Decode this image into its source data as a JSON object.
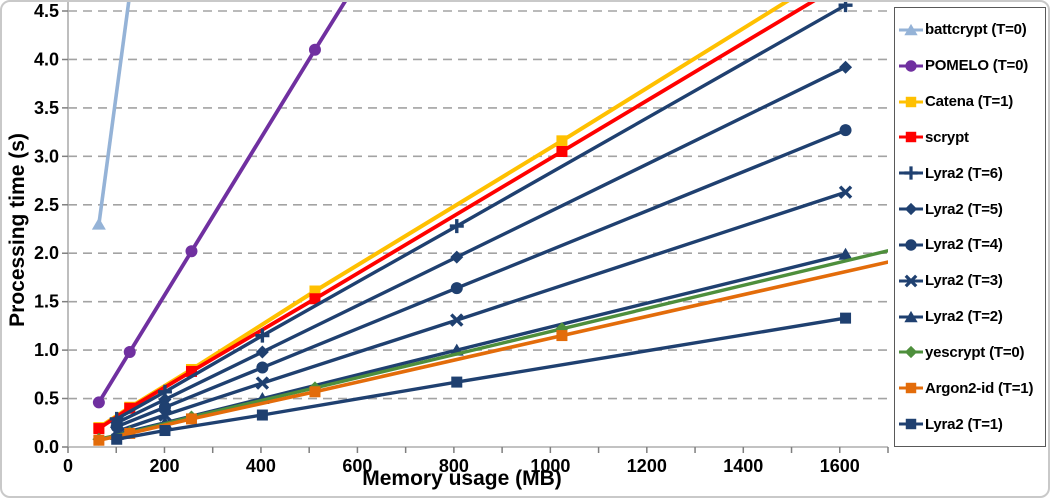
{
  "chart_data": {
    "type": "line",
    "title": "",
    "xlabel": "Memory usage (MB)",
    "ylabel": "Processing time (s)",
    "xlim": [
      0,
      1700
    ],
    "ylim": [
      0,
      4.5
    ],
    "x_ticks": [
      0,
      200,
      400,
      600,
      800,
      1000,
      1200,
      1400,
      1600
    ],
    "x_minor_tick_step": 100,
    "y_ticks": [
      0.0,
      0.5,
      1.0,
      1.5,
      2.0,
      2.5,
      3.0,
      3.5,
      4.0,
      4.5
    ],
    "grid": "horizontal-dashed",
    "legend_position": "right",
    "style": {
      "background": "#FFFFFF",
      "grid_color": "#A3A3A3",
      "axis_color": "#ADADAD",
      "tick_color": "#7F7F7F",
      "text_color": "#000000",
      "legend_border": "#595959",
      "frame_border": "#C9C9C9"
    },
    "series": [
      {
        "name": "battcrypt (T=0)",
        "color": "#95B3D7",
        "marker": "triangle",
        "width": 3.6,
        "points": [
          [
            64,
            2.3
          ],
          [
            128,
            4.67
          ]
        ]
      },
      {
        "name": "POMELO (T=0)",
        "color": "#7030A0",
        "marker": "circle",
        "width": 3.8,
        "points": [
          [
            64,
            0.46
          ],
          [
            128,
            0.98
          ],
          [
            256,
            2.02
          ],
          [
            512,
            4.1
          ],
          [
            1024,
            8.2
          ]
        ]
      },
      {
        "name": "Catena (T=1)",
        "color": "#FFC000",
        "marker": "square",
        "width": 4,
        "points": [
          [
            64,
            0.2
          ],
          [
            128,
            0.41
          ],
          [
            256,
            0.8
          ],
          [
            512,
            1.61
          ],
          [
            1024,
            3.16
          ],
          [
            2048,
            6.32
          ]
        ]
      },
      {
        "name": "scrypt",
        "color": "#FF0000",
        "marker": "square",
        "width": 3.8,
        "points": [
          [
            64,
            0.19
          ],
          [
            128,
            0.4
          ],
          [
            256,
            0.78
          ],
          [
            512,
            1.53
          ],
          [
            1024,
            3.05
          ],
          [
            2048,
            6.1
          ]
        ]
      },
      {
        "name": "Lyra2 (T=6)",
        "color": "#1F4070",
        "marker": "plus",
        "width": 3.4,
        "points": [
          [
            101,
            0.29
          ],
          [
            201,
            0.57
          ],
          [
            403,
            1.15
          ],
          [
            806,
            2.28
          ],
          [
            1612,
            4.56
          ]
        ]
      },
      {
        "name": "Lyra2 (T=5)",
        "color": "#1F4070",
        "marker": "diamond",
        "width": 3.4,
        "points": [
          [
            101,
            0.25
          ],
          [
            201,
            0.49
          ],
          [
            403,
            0.98
          ],
          [
            806,
            1.96
          ],
          [
            1612,
            3.92
          ]
        ]
      },
      {
        "name": "Lyra2 (T=4)",
        "color": "#1F4070",
        "marker": "circle",
        "width": 3.4,
        "points": [
          [
            101,
            0.21
          ],
          [
            201,
            0.41
          ],
          [
            403,
            0.82
          ],
          [
            806,
            1.64
          ],
          [
            1612,
            3.27
          ]
        ]
      },
      {
        "name": "Lyra2 (T=3)",
        "color": "#1F4070",
        "marker": "x",
        "width": 3.4,
        "points": [
          [
            101,
            0.16
          ],
          [
            201,
            0.33
          ],
          [
            403,
            0.66
          ],
          [
            806,
            1.31
          ],
          [
            1612,
            2.63
          ]
        ]
      },
      {
        "name": "Lyra2 (T=2)",
        "color": "#1F4070",
        "marker": "triangle",
        "width": 3.4,
        "points": [
          [
            101,
            0.13
          ],
          [
            201,
            0.25
          ],
          [
            403,
            0.5
          ],
          [
            806,
            1.0
          ],
          [
            1612,
            1.99
          ]
        ]
      },
      {
        "name": "yescrypt (T=0)",
        "color": "#4E8F3C",
        "marker": "diamond",
        "width": 3.4,
        "points": [
          [
            64,
            0.08
          ],
          [
            128,
            0.15
          ],
          [
            256,
            0.31
          ],
          [
            512,
            0.61
          ],
          [
            1024,
            1.22
          ],
          [
            2048,
            2.44
          ]
        ]
      },
      {
        "name": "Argon2-id (T=1)",
        "color": "#E36C0A",
        "marker": "square",
        "width": 3.6,
        "points": [
          [
            64,
            0.07
          ],
          [
            128,
            0.14
          ],
          [
            256,
            0.29
          ],
          [
            512,
            0.57
          ],
          [
            1024,
            1.15
          ],
          [
            2048,
            2.3
          ]
        ]
      },
      {
        "name": "Lyra2 (T=1)",
        "color": "#1F4070",
        "marker": "square",
        "width": 3.4,
        "points": [
          [
            101,
            0.08
          ],
          [
            201,
            0.17
          ],
          [
            403,
            0.33
          ],
          [
            806,
            0.67
          ],
          [
            1612,
            1.33
          ]
        ]
      }
    ]
  },
  "axes": {
    "x_tick_labels": [
      "0",
      "200",
      "400",
      "600",
      "800",
      "1000",
      "1200",
      "1400",
      "1600"
    ],
    "y_tick_labels": [
      "0.0",
      "0.5",
      "1.0",
      "1.5",
      "2.0",
      "2.5",
      "3.0",
      "3.5",
      "4.0",
      "4.5"
    ]
  }
}
